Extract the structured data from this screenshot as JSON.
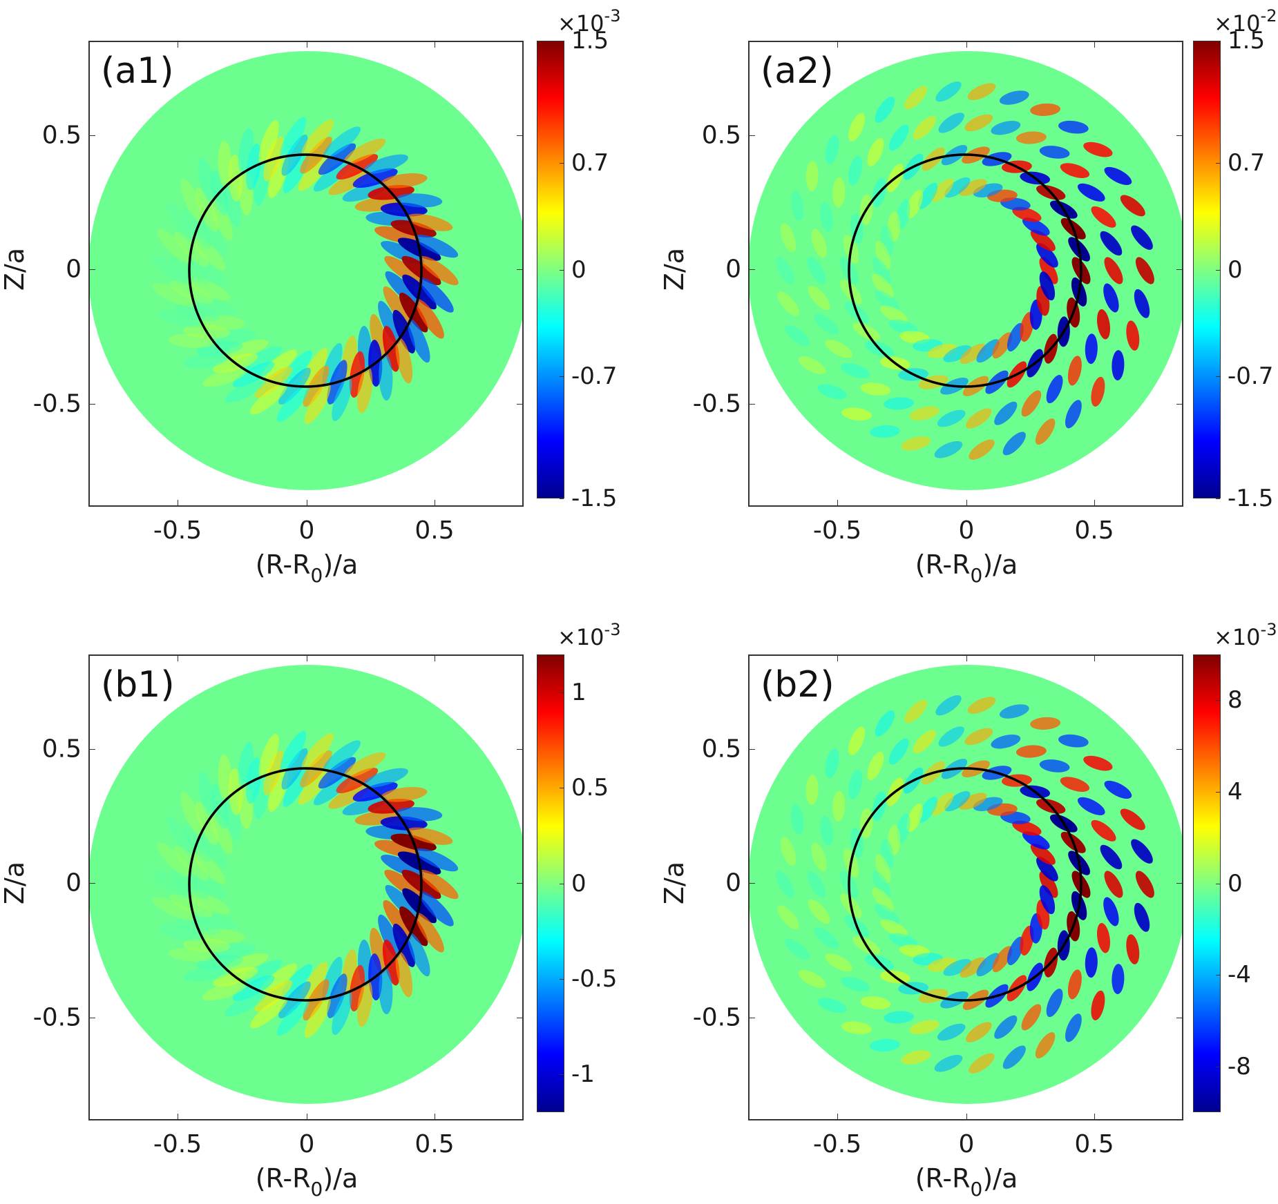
{
  "figure": {
    "x_axis_label_main": "(R-R",
    "x_axis_label_sub": "0",
    "x_axis_label_tail": ")/a",
    "y_axis_label": "Z/a",
    "x_tick_labels": [
      "-0.5",
      "0",
      "0.5"
    ],
    "y_tick_labels": [
      "0.5",
      "0",
      "-0.5"
    ]
  },
  "panels": [
    {
      "label": "(a1)",
      "cbar_multiplier": "×10",
      "cbar_exponent": "-3",
      "cbar_ticks": [
        "1.5",
        "0.7",
        "0",
        "-0.7",
        "-1.5"
      ]
    },
    {
      "label": "(a2)",
      "cbar_multiplier": "×10",
      "cbar_exponent": "-2",
      "cbar_ticks": [
        "1.5",
        "0.7",
        "0",
        "-0.7",
        "-1.5"
      ]
    },
    {
      "label": "(b1)",
      "cbar_multiplier": "×10",
      "cbar_exponent": "-3",
      "cbar_ticks": [
        "1",
        "0.5",
        "0",
        "-0.5",
        "-1"
      ]
    },
    {
      "label": "(b2)",
      "cbar_multiplier": "×10",
      "cbar_exponent": "-3",
      "cbar_ticks": [
        "8",
        "4",
        "0",
        "-4",
        "-8"
      ]
    }
  ],
  "colors": {
    "background_field": "#6cff8f",
    "flux_surface_line": "#000000",
    "axes_border": "#333333",
    "colormap": [
      "#00008f",
      "#0000ff",
      "#0080ff",
      "#00ffff",
      "#80ff80",
      "#ffff00",
      "#ff8000",
      "#ff0000",
      "#800000"
    ]
  },
  "chart_data": [
    {
      "type": "heatmap",
      "title": "(a1)",
      "xlabel": "(R-R0)/a",
      "ylabel": "Z/a",
      "xlim": [
        -0.85,
        0.85
      ],
      "ylim": [
        -0.85,
        0.85
      ],
      "x_ticks": [
        -0.5,
        0,
        0.5
      ],
      "y_ticks": [
        -0.5,
        0,
        0.5
      ],
      "colormap": "jet",
      "colorbar": {
        "scale": "1e-3",
        "range": [
          -1.5,
          1.5
        ],
        "ticks": [
          -1.5,
          -0.7,
          0,
          0.7,
          1.5
        ]
      },
      "annotations": [
        "Black circle: flux surface at r/a ≈ 0.45, centered at (≈-0.02, 0)",
        "Circular poloidal domain of radius ≈ 0.85"
      ],
      "description": "Ballooning mode structure localized on low-field side near r/a≈0.45, tilted eddies with ~30 alternating positive/negative lobes"
    },
    {
      "type": "heatmap",
      "title": "(a2)",
      "xlabel": "(R-R0)/a",
      "ylabel": "Z/a",
      "xlim": [
        -0.85,
        0.85
      ],
      "ylim": [
        -0.85,
        0.85
      ],
      "x_ticks": [
        -0.5,
        0,
        0.5
      ],
      "y_ticks": [
        -0.5,
        0,
        0.5
      ],
      "colormap": "jet",
      "colorbar": {
        "scale": "1e-2",
        "range": [
          -1.5,
          1.5
        ],
        "ticks": [
          -1.5,
          -0.7,
          0,
          0.7,
          1.5
        ]
      },
      "annotations": [
        "Black circle: flux surface at r/a ≈ 0.45"
      ],
      "description": "Broader radial mode structure extending outward to r/a≈0.8, wavy eddies"
    },
    {
      "type": "heatmap",
      "title": "(b1)",
      "xlabel": "(R-R0)/a",
      "ylabel": "Z/a",
      "xlim": [
        -0.85,
        0.85
      ],
      "ylim": [
        -0.85,
        0.85
      ],
      "x_ticks": [
        -0.5,
        0,
        0.5
      ],
      "y_ticks": [
        -0.5,
        0,
        0.5
      ],
      "colormap": "jet",
      "colorbar": {
        "scale": "1e-3",
        "range": [
          -1.2,
          1.2
        ],
        "ticks": [
          -1,
          -0.5,
          0,
          0.5,
          1
        ]
      },
      "annotations": [
        "Black circle: flux surface at r/a ≈ 0.45"
      ],
      "description": "Similar to (a1), ballooning mode near r/a≈0.45"
    },
    {
      "type": "heatmap",
      "title": "(b2)",
      "xlabel": "(R-R0)/a",
      "ylabel": "Z/a",
      "xlim": [
        -0.85,
        0.85
      ],
      "ylim": [
        -0.85,
        0.85
      ],
      "x_ticks": [
        -0.5,
        0,
        0.5
      ],
      "y_ticks": [
        -0.5,
        0,
        0.5
      ],
      "colormap": "jet",
      "colorbar": {
        "scale": "1e-3",
        "range": [
          -10,
          10
        ],
        "ticks": [
          -8,
          -4,
          0,
          4,
          8
        ]
      },
      "annotations": [
        "Black circle: flux surface at r/a ≈ 0.45"
      ],
      "description": "Broader mode structure with strong lobes on and outside the circle on low-field side"
    }
  ]
}
